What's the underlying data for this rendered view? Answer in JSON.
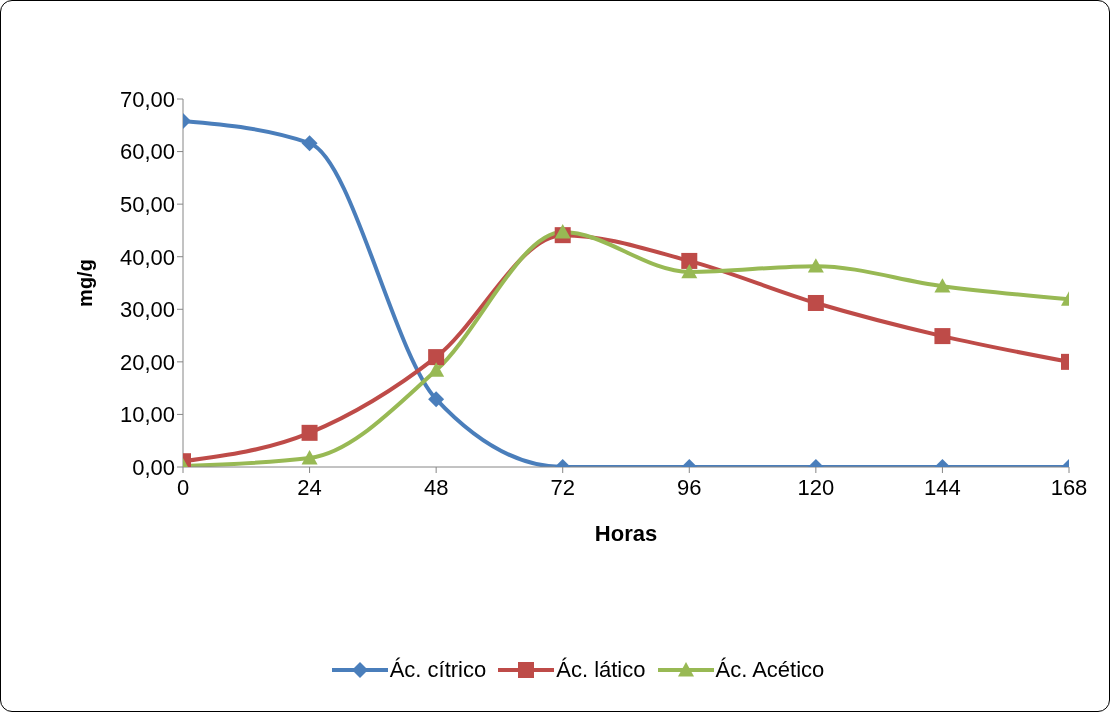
{
  "chart_data": {
    "type": "line",
    "xlabel": "Horas",
    "ylabel": "mg/g",
    "x": [
      0,
      24,
      48,
      72,
      96,
      120,
      144,
      168
    ],
    "xlim": [
      0,
      168
    ],
    "xticks": [
      0,
      24,
      48,
      72,
      96,
      120,
      144,
      168
    ],
    "ylim": [
      0,
      70
    ],
    "yticks": [
      {
        "value": 0,
        "label": "0,00"
      },
      {
        "value": 10,
        "label": "10,00"
      },
      {
        "value": 20,
        "label": "20,00"
      },
      {
        "value": 30,
        "label": "30,00"
      },
      {
        "value": 40,
        "label": "40,00"
      },
      {
        "value": 50,
        "label": "50,00"
      },
      {
        "value": 60,
        "label": "60,00"
      },
      {
        "value": 70,
        "label": "70,00"
      }
    ],
    "grid": false,
    "legend": "bottom",
    "line_style": "solid",
    "series": [
      {
        "name": "Ác. cítrico",
        "color": "#4a7ebb",
        "marker": "diamond",
        "values": [
          65.8,
          61.6,
          12.9,
          0,
          0,
          0,
          0,
          0
        ]
      },
      {
        "name": "Ác. lático",
        "color": "#be4b48",
        "marker": "square",
        "values": [
          1.1,
          6.5,
          20.9,
          44.1,
          39.2,
          31.2,
          24.9,
          20.0
        ]
      },
      {
        "name": "Ác. Acético",
        "color": "#98b954",
        "marker": "triangle",
        "values": [
          0.2,
          1.7,
          18.4,
          44.7,
          37.1,
          38.2,
          34.4,
          31.9
        ]
      }
    ]
  }
}
